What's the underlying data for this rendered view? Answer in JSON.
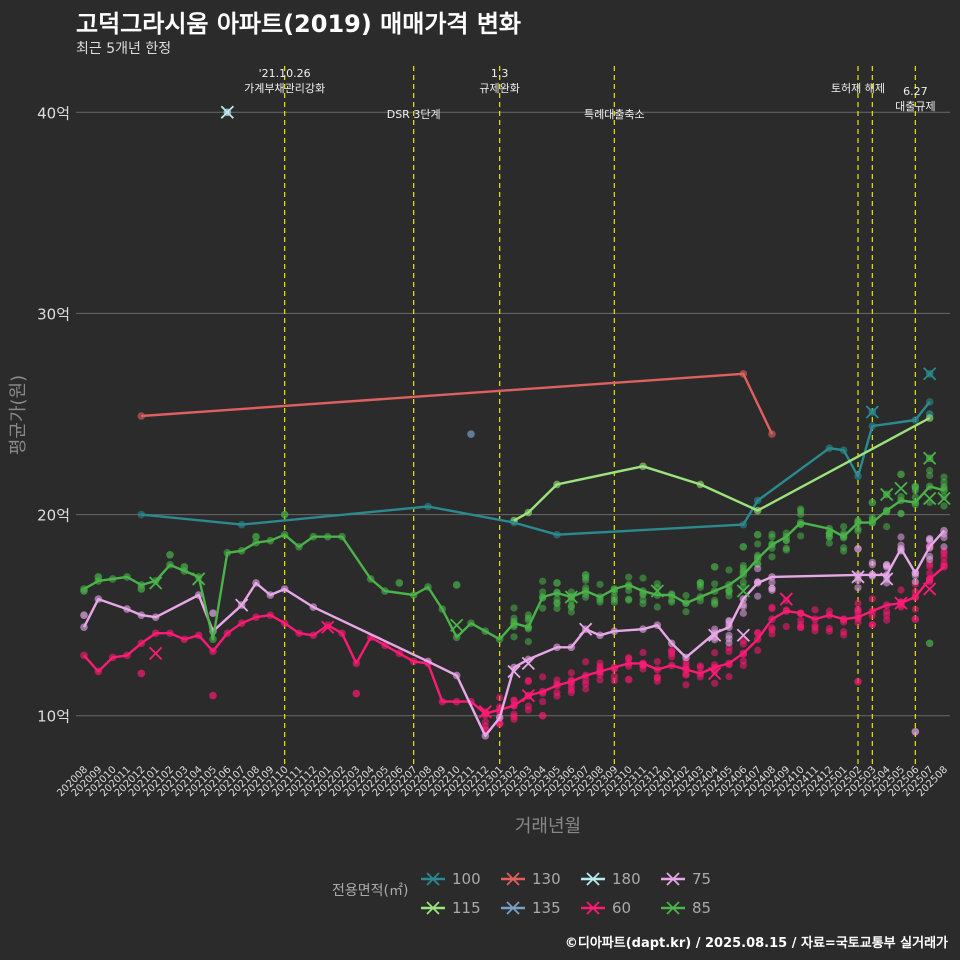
{
  "title": "고덕그라시움 아파트(2019) 매매가격 변화",
  "subtitle": "최근 5개년 한정",
  "caption": "©디아파트(dapt.kr) / 2025.08.15 / 자료=국토교통부 실거래가",
  "colors": {
    "background": "#2b2b2b",
    "grid": "#6a6a6a",
    "vline": "#e8e800",
    "axis_text": "#dddddd",
    "axis_title": "#888888"
  },
  "chart_data": {
    "type": "line",
    "xlabel": "거래년월",
    "ylabel": "평균가(원)",
    "ylim": [
      7.5,
      42.5
    ],
    "y_ticks": [
      {
        "value": 10,
        "label": "10억"
      },
      {
        "value": 20,
        "label": "20억"
      },
      {
        "value": 30,
        "label": "30억"
      },
      {
        "value": 40,
        "label": "40억"
      }
    ],
    "x_categories": [
      "202008",
      "202009",
      "202010",
      "202011",
      "202012",
      "202101",
      "202102",
      "202103",
      "202104",
      "202105",
      "202106",
      "202107",
      "202108",
      "202109",
      "202110",
      "202111",
      "202112",
      "202201",
      "202202",
      "202203",
      "202204",
      "202205",
      "202206",
      "202207",
      "202208",
      "202209",
      "202210",
      "202211",
      "202212",
      "202301",
      "202302",
      "202303",
      "202304",
      "202305",
      "202306",
      "202307",
      "202308",
      "202309",
      "202310",
      "202311",
      "202312",
      "202401",
      "202402",
      "202403",
      "202404",
      "202405",
      "202406",
      "202407",
      "202408",
      "202409",
      "202410",
      "202411",
      "202412",
      "202501",
      "202502",
      "202503",
      "202504",
      "202505",
      "202506",
      "202507",
      "202508"
    ],
    "legend_title": "전용면적(㎡)",
    "legend_entries": [
      "100",
      "115",
      "130",
      "135",
      "180",
      "60",
      "75",
      "85"
    ],
    "events": [
      {
        "x": "202110",
        "lines": [
          "'21.10.26",
          "가계부채관리강화"
        ],
        "level": "high"
      },
      {
        "x": "202207",
        "lines": [
          "DSR 3단계"
        ],
        "level": "low"
      },
      {
        "x": "202301",
        "lines": [
          "1.3",
          "규제완화"
        ],
        "level": "high"
      },
      {
        "x": "202309",
        "lines": [
          "특례대출축소"
        ],
        "level": "low"
      },
      {
        "x": "202502",
        "lines": [
          "토허제 해제"
        ],
        "level": "high"
      },
      {
        "x": "202503",
        "lines": [
          ""
        ],
        "level": "none"
      },
      {
        "x": "202506",
        "lines": [
          "6.27",
          "대출규제"
        ],
        "level": "mid"
      }
    ],
    "series": [
      {
        "name": "100",
        "color": "#2a8a8f",
        "points": [
          [
            4,
            20.0
          ],
          [
            11,
            19.5
          ],
          [
            24,
            20.4
          ],
          [
            30,
            19.6
          ],
          [
            33,
            19.0
          ],
          [
            46,
            19.5
          ],
          [
            47,
            20.7
          ],
          [
            52,
            23.3
          ],
          [
            53,
            23.2
          ],
          [
            54,
            21.9
          ],
          [
            55,
            24.4
          ],
          [
            58,
            24.7
          ],
          [
            59,
            25.6
          ]
        ],
        "extra": [
          [
            55,
            25.1
          ],
          [
            59,
            27.0
          ],
          [
            59,
            25.0
          ]
        ],
        "x_marks": [
          [
            55,
            25.1
          ],
          [
            59,
            27.0
          ]
        ]
      },
      {
        "name": "115",
        "color": "#9ce37d",
        "points": [
          [
            30,
            19.7
          ],
          [
            31,
            20.1
          ],
          [
            33,
            21.5
          ],
          [
            39,
            22.4
          ],
          [
            43,
            21.5
          ],
          [
            47,
            20.2
          ],
          [
            59,
            24.8
          ]
        ],
        "extra": [],
        "x_marks": []
      },
      {
        "name": "130",
        "color": "#e06060",
        "points": [
          [
            4,
            24.9
          ],
          [
            46,
            27.0
          ],
          [
            48,
            24.0
          ]
        ],
        "extra": [],
        "x_marks": []
      },
      {
        "name": "135",
        "color": "#7aa0c8",
        "points": [],
        "extra": [
          [
            27,
            24.0
          ]
        ],
        "x_marks": []
      },
      {
        "name": "180",
        "color": "#b8eaf0",
        "points": [],
        "extra": [
          [
            10,
            40.0
          ]
        ],
        "x_marks": [
          [
            10,
            40.0
          ]
        ]
      },
      {
        "name": "60",
        "color": "#ff1a75",
        "points": [
          [
            0,
            13.0
          ],
          [
            1,
            12.2
          ],
          [
            2,
            12.9
          ],
          [
            3,
            13.0
          ],
          [
            4,
            13.6
          ],
          [
            5,
            14.1
          ],
          [
            6,
            14.1
          ],
          [
            7,
            13.8
          ],
          [
            8,
            14.0
          ],
          [
            9,
            13.2
          ],
          [
            10,
            14.1
          ],
          [
            11,
            14.6
          ],
          [
            12,
            14.9
          ],
          [
            13,
            15.0
          ],
          [
            14,
            14.6
          ],
          [
            15,
            14.1
          ],
          [
            16,
            14.0
          ],
          [
            17,
            14.5
          ],
          [
            18,
            14.1
          ],
          [
            19,
            12.6
          ],
          [
            20,
            13.9
          ],
          [
            21,
            13.5
          ],
          [
            22,
            13.1
          ],
          [
            23,
            12.7
          ],
          [
            24,
            12.6
          ],
          [
            25,
            10.7
          ],
          [
            26,
            10.7
          ],
          [
            27,
            10.7
          ],
          [
            28,
            10.1
          ],
          [
            29,
            10.3
          ],
          [
            30,
            10.5
          ],
          [
            31,
            11.0
          ],
          [
            32,
            11.2
          ],
          [
            33,
            11.5
          ],
          [
            34,
            11.7
          ],
          [
            35,
            12.0
          ],
          [
            36,
            12.2
          ],
          [
            37,
            12.4
          ],
          [
            38,
            12.6
          ],
          [
            39,
            12.6
          ],
          [
            40,
            12.3
          ],
          [
            41,
            12.5
          ],
          [
            42,
            12.3
          ],
          [
            43,
            12.1
          ],
          [
            44,
            12.4
          ],
          [
            45,
            12.6
          ],
          [
            46,
            13.1
          ],
          [
            47,
            13.8
          ],
          [
            48,
            14.8
          ],
          [
            49,
            15.2
          ],
          [
            50,
            15.1
          ],
          [
            51,
            14.8
          ],
          [
            52,
            15.0
          ],
          [
            53,
            14.8
          ],
          [
            54,
            14.9
          ],
          [
            55,
            15.2
          ],
          [
            56,
            15.5
          ],
          [
            57,
            15.6
          ],
          [
            58,
            15.9
          ],
          [
            59,
            16.8
          ],
          [
            60,
            17.4
          ]
        ],
        "extra": [
          [
            4,
            12.1
          ],
          [
            9,
            11.0
          ],
          [
            19,
            11.1
          ],
          [
            28,
            9.3
          ],
          [
            29,
            9.6
          ],
          [
            32,
            10.0
          ],
          [
            38,
            11.8
          ],
          [
            54,
            11.7
          ],
          [
            58,
            14.8
          ],
          [
            59,
            18.4
          ]
        ],
        "x_marks": [
          [
            5,
            13.1
          ],
          [
            17,
            14.4
          ],
          [
            28,
            10.2
          ],
          [
            31,
            11.0
          ],
          [
            44,
            12.1
          ],
          [
            49,
            15.8
          ],
          [
            59,
            16.3
          ],
          [
            57,
            15.6
          ]
        ]
      },
      {
        "name": "75",
        "color": "#e8a8e8",
        "points": [
          [
            0,
            14.4
          ],
          [
            1,
            15.8
          ],
          [
            3,
            15.3
          ],
          [
            4,
            15.0
          ],
          [
            5,
            14.9
          ],
          [
            8,
            16.0
          ],
          [
            9,
            14.2
          ],
          [
            11,
            15.5
          ],
          [
            12,
            16.6
          ],
          [
            13,
            16.0
          ],
          [
            14,
            16.3
          ],
          [
            16,
            15.4
          ],
          [
            24,
            12.7
          ],
          [
            26,
            12.0
          ],
          [
            28,
            9.0
          ],
          [
            29,
            9.9
          ],
          [
            30,
            12.4
          ],
          [
            31,
            12.8
          ],
          [
            33,
            13.4
          ],
          [
            34,
            13.4
          ],
          [
            35,
            14.3
          ],
          [
            36,
            14.0
          ],
          [
            37,
            14.2
          ],
          [
            39,
            14.3
          ],
          [
            40,
            14.5
          ],
          [
            41,
            13.6
          ],
          [
            42,
            12.9
          ],
          [
            44,
            14.1
          ],
          [
            45,
            14.4
          ],
          [
            46,
            15.8
          ],
          [
            47,
            16.6
          ],
          [
            48,
            16.9
          ],
          [
            54,
            17.0
          ],
          [
            55,
            17.0
          ],
          [
            56,
            17.0
          ],
          [
            57,
            18.3
          ],
          [
            58,
            17.1
          ],
          [
            59,
            18.4
          ],
          [
            60,
            19.2
          ]
        ],
        "extra": [
          [
            0,
            15.0
          ],
          [
            9,
            15.1
          ],
          [
            54,
            18.3
          ],
          [
            58,
            9.2
          ],
          [
            56,
            17.5
          ]
        ],
        "x_marks": [
          [
            11,
            15.5
          ],
          [
            30,
            12.2
          ],
          [
            31,
            12.6
          ],
          [
            35,
            14.3
          ],
          [
            44,
            14.0
          ],
          [
            46,
            14.0
          ],
          [
            54,
            16.9
          ],
          [
            56,
            16.8
          ]
        ]
      },
      {
        "name": "85",
        "color": "#4ab34a",
        "points": [
          [
            0,
            16.3
          ],
          [
            1,
            16.7
          ],
          [
            2,
            16.8
          ],
          [
            3,
            16.9
          ],
          [
            4,
            16.5
          ],
          [
            5,
            16.7
          ],
          [
            6,
            17.5
          ],
          [
            7,
            17.2
          ],
          [
            8,
            16.9
          ],
          [
            9,
            13.8
          ],
          [
            10,
            18.1
          ],
          [
            11,
            18.2
          ],
          [
            12,
            18.6
          ],
          [
            13,
            18.7
          ],
          [
            14,
            19.0
          ],
          [
            15,
            18.4
          ],
          [
            16,
            18.9
          ],
          [
            17,
            18.9
          ],
          [
            18,
            18.9
          ],
          [
            20,
            16.8
          ],
          [
            21,
            16.2
          ],
          [
            23,
            16.0
          ],
          [
            24,
            16.4
          ],
          [
            25,
            15.3
          ],
          [
            26,
            13.9
          ],
          [
            27,
            14.6
          ],
          [
            28,
            14.2
          ],
          [
            29,
            13.8
          ],
          [
            30,
            14.6
          ],
          [
            31,
            14.4
          ],
          [
            32,
            15.9
          ],
          [
            33,
            16.1
          ],
          [
            34,
            15.9
          ],
          [
            35,
            16.2
          ],
          [
            36,
            15.9
          ],
          [
            37,
            16.3
          ],
          [
            38,
            16.5
          ],
          [
            39,
            16.2
          ],
          [
            40,
            16.0
          ],
          [
            41,
            16.0
          ],
          [
            42,
            15.6
          ],
          [
            43,
            15.9
          ],
          [
            44,
            16.2
          ],
          [
            45,
            16.5
          ],
          [
            46,
            17.0
          ],
          [
            47,
            17.8
          ],
          [
            48,
            18.5
          ],
          [
            49,
            18.9
          ],
          [
            50,
            19.6
          ],
          [
            52,
            19.3
          ],
          [
            53,
            18.9
          ],
          [
            54,
            19.6
          ],
          [
            55,
            19.6
          ],
          [
            56,
            20.2
          ],
          [
            57,
            20.7
          ],
          [
            58,
            20.6
          ],
          [
            59,
            21.4
          ],
          [
            60,
            21.2
          ]
        ],
        "extra": [
          [
            0,
            16.2
          ],
          [
            1,
            16.9
          ],
          [
            4,
            16.3
          ],
          [
            6,
            18.0
          ],
          [
            7,
            17.4
          ],
          [
            12,
            18.9
          ],
          [
            14,
            20.0
          ],
          [
            22,
            16.6
          ],
          [
            26,
            16.5
          ],
          [
            33,
            16.6
          ],
          [
            35,
            17.0
          ],
          [
            44,
            17.4
          ],
          [
            46,
            18.4
          ],
          [
            47,
            19.0
          ],
          [
            55,
            20.6
          ],
          [
            56,
            21.0
          ],
          [
            57,
            22.0
          ],
          [
            58,
            21.4
          ],
          [
            59,
            22.8
          ],
          [
            59,
            13.6
          ]
        ],
        "x_marks": [
          [
            5,
            16.6
          ],
          [
            8,
            16.8
          ],
          [
            26,
            14.5
          ],
          [
            34,
            15.9
          ],
          [
            40,
            16.2
          ],
          [
            46,
            16.2
          ],
          [
            56,
            21.0
          ],
          [
            57,
            21.3
          ],
          [
            59,
            22.8
          ],
          [
            59,
            20.8
          ],
          [
            60,
            20.8
          ]
        ]
      }
    ],
    "dense_clusters": [
      {
        "series": "60",
        "x_from": 28,
        "x_to": 60
      },
      {
        "series": "85",
        "x_from": 30,
        "x_to": 60
      },
      {
        "series": "75",
        "x_from": 44,
        "x_to": 60
      }
    ]
  }
}
